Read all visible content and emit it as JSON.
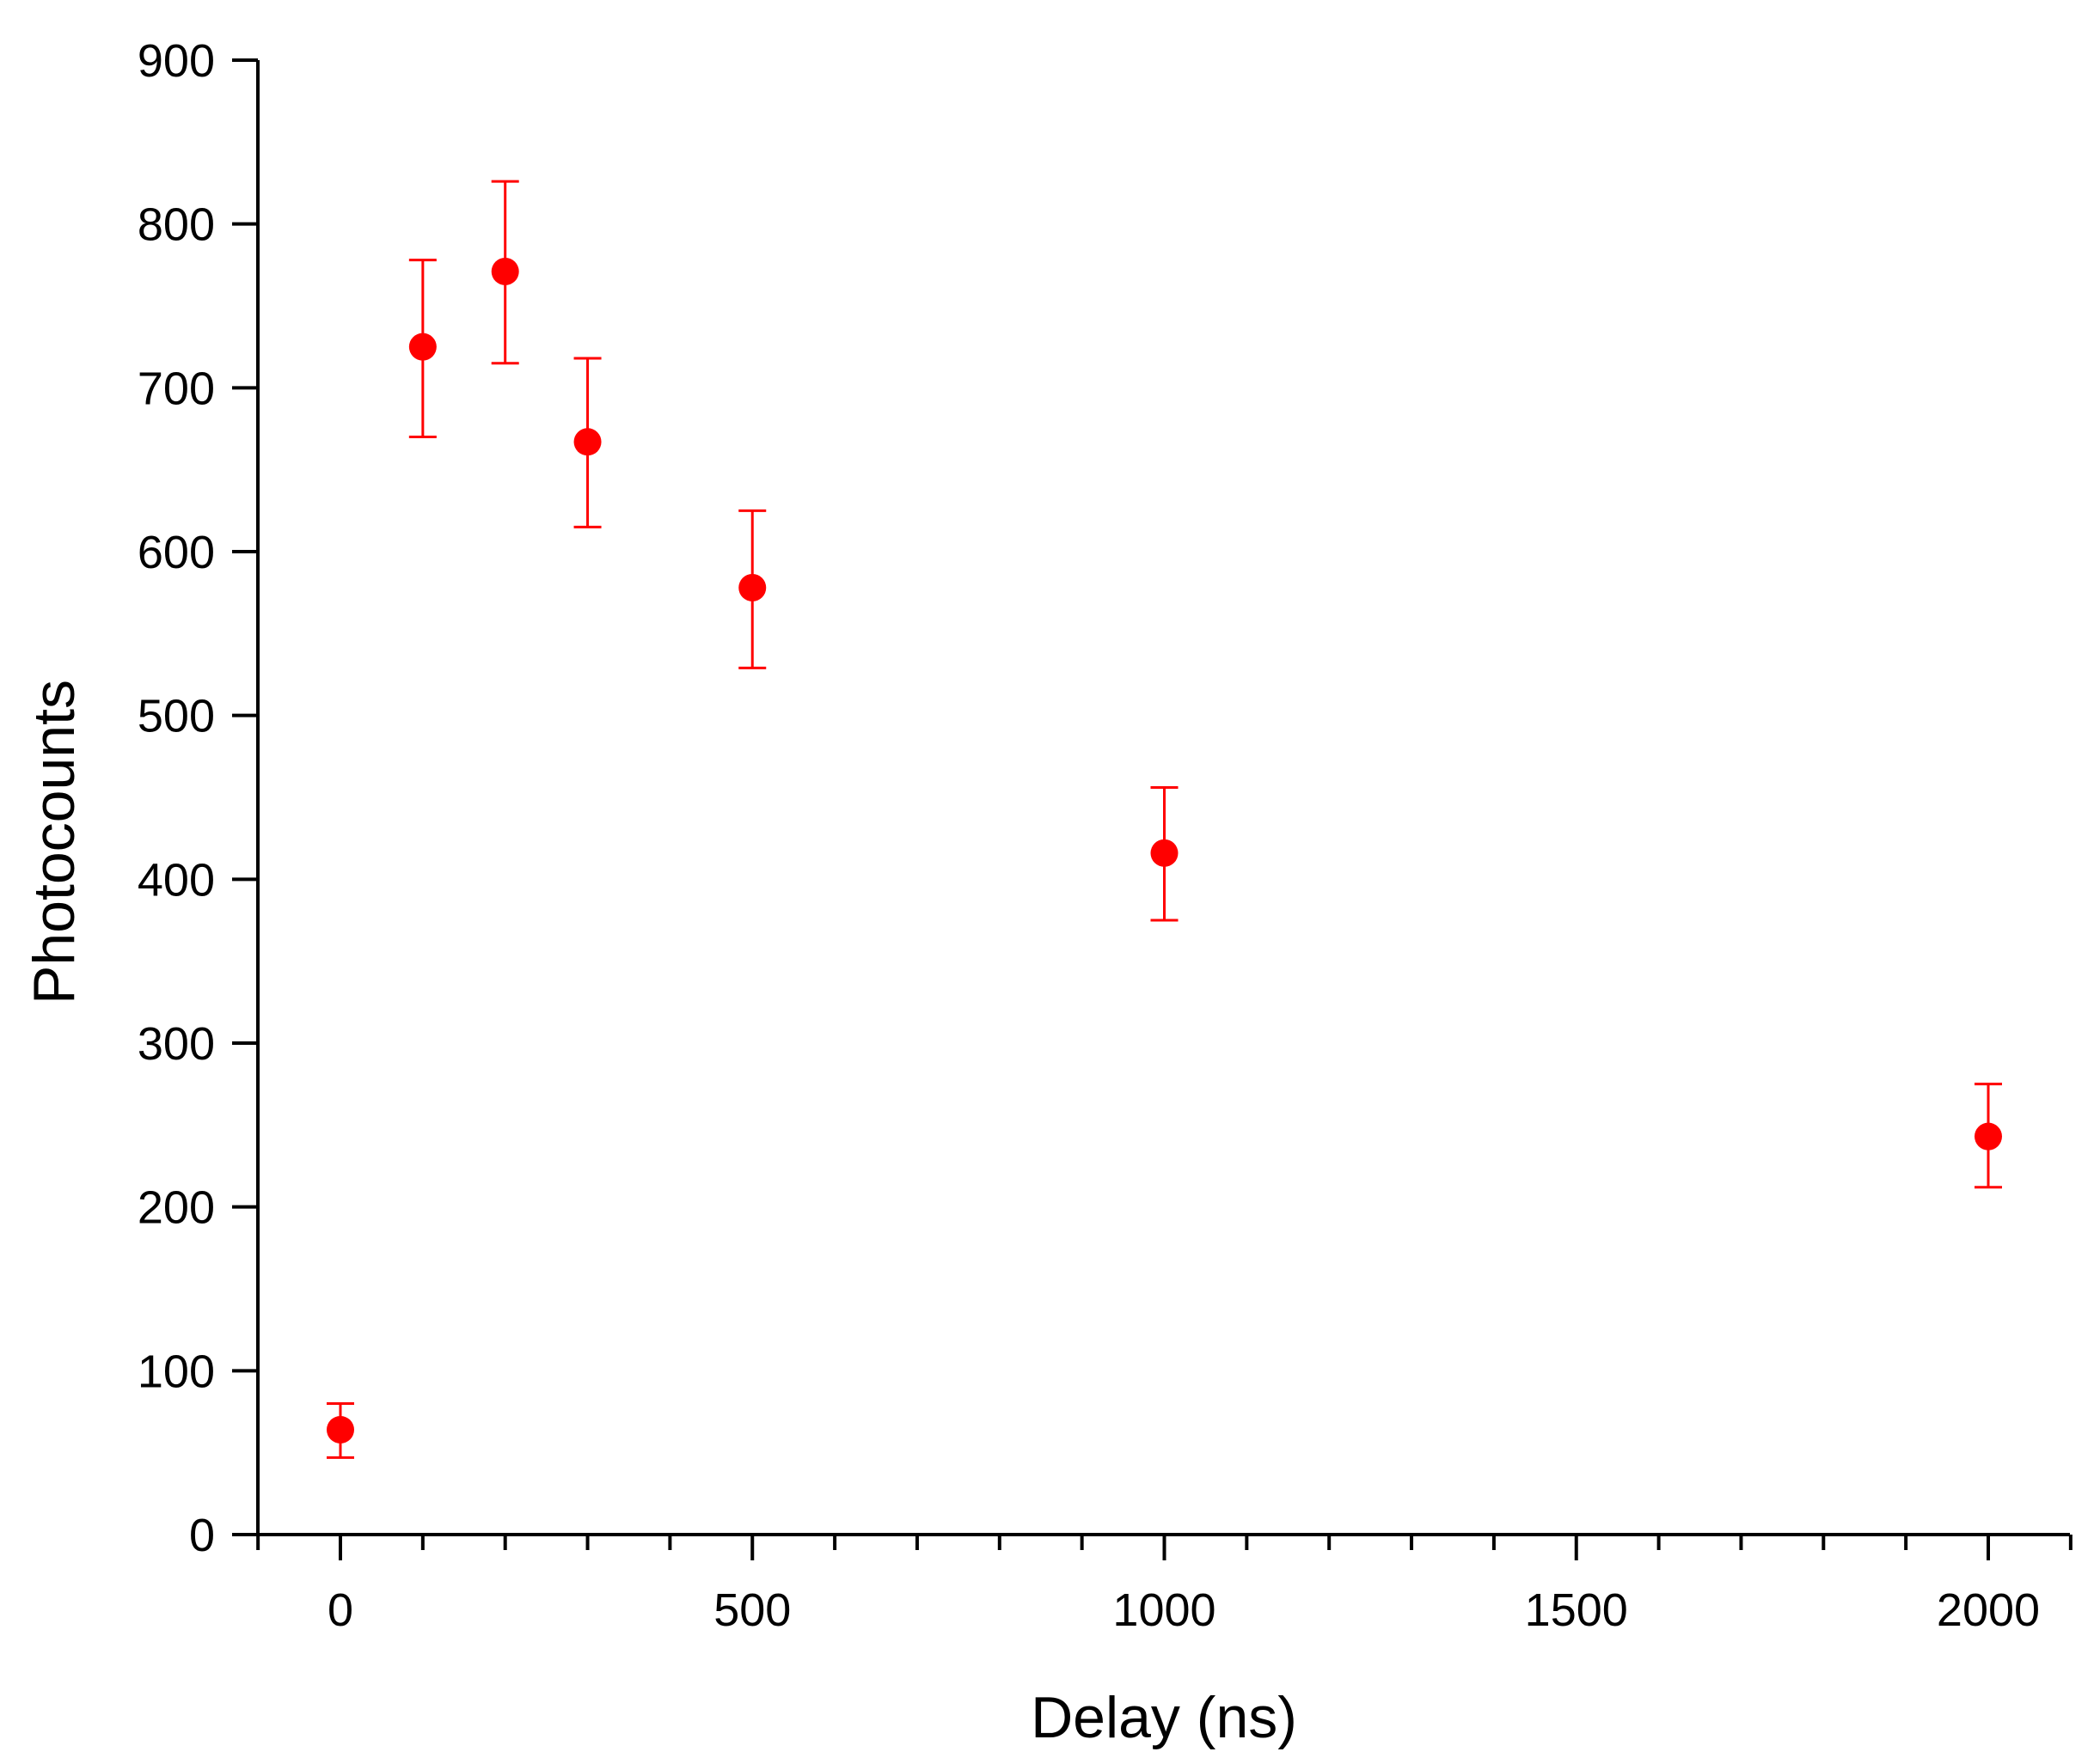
{
  "chart_data": {
    "type": "scatter",
    "xlabel": "Delay (ns)",
    "ylabel": "Photocounts",
    "xlim": [
      -100,
      2100
    ],
    "ylim": [
      0,
      900
    ],
    "x_ticks": [
      0,
      500,
      1000,
      1500,
      2000
    ],
    "x_tick_labels": [
      "0",
      "500",
      "1000",
      "1500",
      "2000"
    ],
    "x_minor_step": 100,
    "y_ticks": [
      0,
      100,
      200,
      300,
      400,
      500,
      600,
      700,
      800,
      900
    ],
    "y_tick_labels": [
      "0",
      "100",
      "200",
      "300",
      "400",
      "500",
      "600",
      "700",
      "800",
      "900"
    ],
    "grid": false,
    "legend": "none",
    "marker_color": "#ff0000",
    "axis_color": "#000000",
    "points": [
      {
        "x": 0,
        "y": 64,
        "y_low": 47,
        "y_high": 80
      },
      {
        "x": 100,
        "y": 725,
        "y_low": 670,
        "y_high": 778
      },
      {
        "x": 200,
        "y": 771,
        "y_low": 715,
        "y_high": 826
      },
      {
        "x": 300,
        "y": 667,
        "y_low": 615,
        "y_high": 718
      },
      {
        "x": 500,
        "y": 578,
        "y_low": 529,
        "y_high": 625
      },
      {
        "x": 1000,
        "y": 416,
        "y_low": 375,
        "y_high": 456
      },
      {
        "x": 2000,
        "y": 243,
        "y_low": 212,
        "y_high": 275
      }
    ]
  }
}
